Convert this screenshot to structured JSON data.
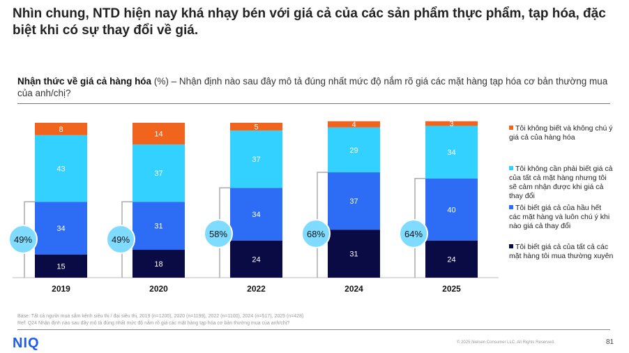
{
  "title": "Nhìn chung, NTD hiện nay khá nhạy bén với giá cả của các sản phẩm thực phẩm, tạp hóa, đặc biệt khi có sự thay đổi về giá.",
  "subtitle_bold": "Nhận thức về giá cả hàng hóa",
  "subtitle_rest": " (%) – Nhận định nào sau đây mô tả đúng nhất mức độ nắm rõ giá các mặt hàng tạp hóa cơ bản thường mua của anh/chị?",
  "footnotes": {
    "base": "Base: Tất cả người mua sắm kênh siêu thị / đại siêu thị, 2019 (n=1200), 2020 (n=1199), 2022 (n=1100), 2024 (n=517), 2025 (n=428)",
    "ref": "Ref: Q24 Nhận định nào sau đây mô tả đúng nhất mức độ nắm rõ giá các mặt hàng tạp hóa cơ bản thường mua của anh/chị?"
  },
  "logo": "NIQ",
  "copyright": "© 2025 Nielsen Consumer LLC. All Rights Reserved.",
  "page_number": "81",
  "chart_data": {
    "type": "bar",
    "stacked": true,
    "categories": [
      "2019",
      "2020",
      "2022",
      "2024",
      "2025"
    ],
    "series": [
      {
        "name": "Tôi biết giá cả của tất cả các mặt hàng tôi mua thường xuyên",
        "color": "#0A0A45",
        "values": [
          15,
          18,
          24,
          31,
          24
        ]
      },
      {
        "name": "Tôi biết giá cả của hầu hết các mặt hàng và luôn chú ý khi nào giá cả thay đổi",
        "color": "#2D6CF5",
        "values": [
          34,
          31,
          34,
          37,
          40
        ]
      },
      {
        "name": "Tôi không cần phải biết giá cả của tất cả mặt hàng nhưng tôi sẽ cảm nhận được khi giá cả thay đổi",
        "color": "#33D1FF",
        "values": [
          43,
          37,
          37,
          29,
          34
        ]
      },
      {
        "name": "Tôi không biết và không chú ý giá cả của hàng hóa",
        "color": "#F0641E",
        "values": [
          8,
          14,
          5,
          4,
          3
        ]
      }
    ],
    "totals_label": [
      "49%",
      "49%",
      "58%",
      "68%",
      "64%"
    ],
    "ylim": [
      0,
      100
    ],
    "legend": "right"
  }
}
